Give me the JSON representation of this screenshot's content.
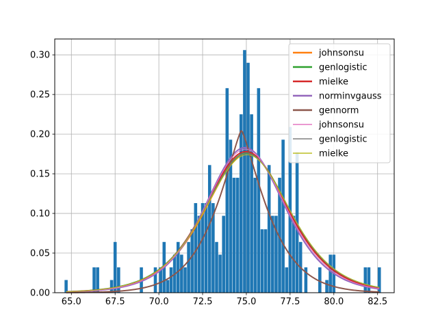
{
  "chart_data": {
    "type": "bar",
    "title": "",
    "xlabel": "",
    "ylabel": "",
    "xlim": [
      64.05,
      83.45
    ],
    "ylim": [
      0,
      0.32
    ],
    "x_ticks": [
      65.0,
      67.5,
      70.0,
      72.5,
      75.0,
      77.5,
      80.0,
      82.5
    ],
    "x_tick_labels": [
      "65.0",
      "67.5",
      "70.0",
      "72.5",
      "75.0",
      "77.5",
      "80.0",
      "82.5"
    ],
    "y_ticks": [
      0.0,
      0.05,
      0.1,
      0.15,
      0.2,
      0.25,
      0.3
    ],
    "y_tick_labels": [
      "0.00",
      "0.05",
      "0.10",
      "0.15",
      "0.20",
      "0.25",
      "0.30"
    ],
    "grid": true,
    "legend_position": "upper right",
    "histogram": {
      "color": "#1f77b4",
      "bins": [
        {
          "x": 64.7,
          "h": 0.016
        },
        {
          "x": 66.3,
          "h": 0.032
        },
        {
          "x": 66.5,
          "h": 0.032
        },
        {
          "x": 67.3,
          "h": 0.016
        },
        {
          "x": 67.5,
          "h": 0.064
        },
        {
          "x": 67.7,
          "h": 0.032
        },
        {
          "x": 69.0,
          "h": 0.032
        },
        {
          "x": 69.8,
          "h": 0.032
        },
        {
          "x": 70.1,
          "h": 0.032
        },
        {
          "x": 70.3,
          "h": 0.064
        },
        {
          "x": 70.5,
          "h": 0.016
        },
        {
          "x": 70.7,
          "h": 0.032
        },
        {
          "x": 70.9,
          "h": 0.048
        },
        {
          "x": 71.1,
          "h": 0.064
        },
        {
          "x": 71.3,
          "h": 0.048
        },
        {
          "x": 71.5,
          "h": 0.032
        },
        {
          "x": 71.7,
          "h": 0.064
        },
        {
          "x": 71.9,
          "h": 0.08
        },
        {
          "x": 72.1,
          "h": 0.113
        },
        {
          "x": 72.3,
          "h": 0.097
        },
        {
          "x": 72.5,
          "h": 0.113
        },
        {
          "x": 72.7,
          "h": 0.113
        },
        {
          "x": 72.9,
          "h": 0.161
        },
        {
          "x": 73.1,
          "h": 0.113
        },
        {
          "x": 73.3,
          "h": 0.064
        },
        {
          "x": 73.5,
          "h": 0.048
        },
        {
          "x": 73.7,
          "h": 0.097
        },
        {
          "x": 73.9,
          "h": 0.258
        },
        {
          "x": 74.1,
          "h": 0.193
        },
        {
          "x": 74.3,
          "h": 0.145
        },
        {
          "x": 74.5,
          "h": 0.145
        },
        {
          "x": 74.7,
          "h": 0.225
        },
        {
          "x": 74.9,
          "h": 0.306
        },
        {
          "x": 75.1,
          "h": 0.29
        },
        {
          "x": 75.3,
          "h": 0.225
        },
        {
          "x": 75.5,
          "h": 0.145
        },
        {
          "x": 75.7,
          "h": 0.258
        },
        {
          "x": 75.9,
          "h": 0.08
        },
        {
          "x": 76.1,
          "h": 0.08
        },
        {
          "x": 76.3,
          "h": 0.161
        },
        {
          "x": 76.5,
          "h": 0.097
        },
        {
          "x": 76.7,
          "h": 0.097
        },
        {
          "x": 76.9,
          "h": 0.145
        },
        {
          "x": 77.1,
          "h": 0.193
        },
        {
          "x": 77.3,
          "h": 0.032
        },
        {
          "x": 77.5,
          "h": 0.209
        },
        {
          "x": 77.7,
          "h": 0.097
        },
        {
          "x": 77.9,
          "h": 0.177
        },
        {
          "x": 78.1,
          "h": 0.064
        },
        {
          "x": 78.4,
          "h": 0.032
        },
        {
          "x": 79.2,
          "h": 0.032
        },
        {
          "x": 79.6,
          "h": 0.016
        },
        {
          "x": 79.8,
          "h": 0.048
        },
        {
          "x": 80.0,
          "h": 0.048
        },
        {
          "x": 81.8,
          "h": 0.032
        },
        {
          "x": 82.0,
          "h": 0.032
        },
        {
          "x": 82.6,
          "h": 0.032
        }
      ]
    },
    "series": [
      {
        "name": "johnsonsu",
        "color": "#ff7f0e",
        "width": 2,
        "peak": 0.176,
        "loc": 75.05,
        "scale": 1.6,
        "shape": "logistic"
      },
      {
        "name": "genlogistic",
        "color": "#2ca02c",
        "width": 2,
        "peak": 0.176,
        "loc": 75.02,
        "scale": 1.62,
        "shape": "logistic"
      },
      {
        "name": "mielke",
        "color": "#d62728",
        "width": 2,
        "peak": 0.178,
        "loc": 74.98,
        "scale": 1.59,
        "shape": "logistic"
      },
      {
        "name": "norminvgauss",
        "color": "#9467bd",
        "width": 2,
        "peak": 0.183,
        "loc": 74.92,
        "scale": 1.52,
        "shape": "logistic"
      },
      {
        "name": "gennorm",
        "color": "#8c564b",
        "width": 2,
        "peak": 0.205,
        "loc": 74.72,
        "scale": 2.05,
        "shape": "gennorm"
      },
      {
        "name": "johnsonsu",
        "color": "#e377c2",
        "width": 1,
        "peak": 0.181,
        "loc": 74.95,
        "scale": 1.55,
        "shape": "logistic"
      },
      {
        "name": "genlogistic",
        "color": "#7f7f7f",
        "width": 1,
        "peak": 0.176,
        "loc": 75.02,
        "scale": 1.62,
        "shape": "logistic"
      },
      {
        "name": "mielke",
        "color": "#bcbd22",
        "width": 1,
        "peak": 0.174,
        "loc": 75.05,
        "scale": 1.63,
        "shape": "logistic"
      }
    ],
    "curve_x_range": [
      64.7,
      82.6
    ]
  }
}
